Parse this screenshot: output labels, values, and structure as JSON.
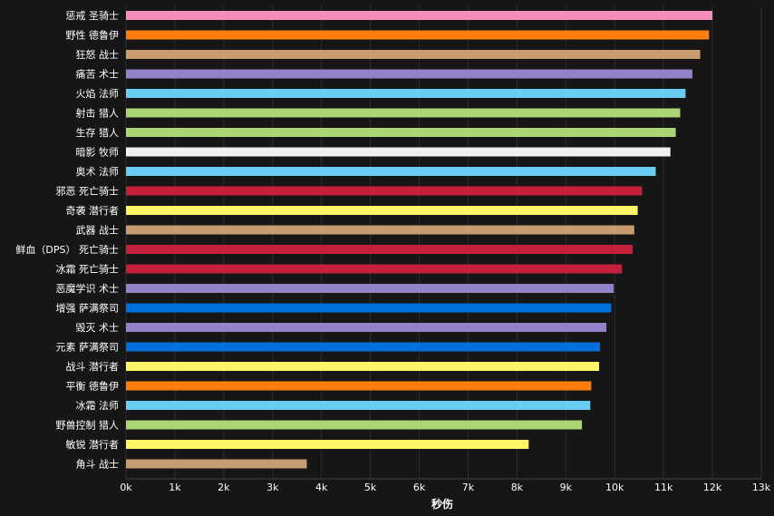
{
  "chart_data": {
    "type": "bar",
    "orientation": "horizontal",
    "xlabel": "秒伤",
    "ylabel": "",
    "title": "",
    "xlim": [
      0,
      13000
    ],
    "x_ticks": [
      "0k",
      "1k",
      "2k",
      "3k",
      "4k",
      "5k",
      "6k",
      "7k",
      "8k",
      "9k",
      "10k",
      "11k",
      "12k",
      "13k"
    ],
    "grid": "vertical",
    "legend": "none",
    "background": "#161616",
    "categories": [
      "惩戒 圣骑士",
      "野性 德鲁伊",
      "狂怒 战士",
      "痛苦 术士",
      "火焰 法师",
      "射击 猎人",
      "生存 猎人",
      "暗影 牧师",
      "奥术 法师",
      "邪恶 死亡骑士",
      "奇袭 潜行者",
      "武器 战士",
      "鲜血（DPS） 死亡骑士",
      "冰霜 死亡骑士",
      "恶魔学识 术士",
      "增强 萨满祭司",
      "毁灭 术士",
      "元素 萨满祭司",
      "战斗 潜行者",
      "平衡 德鲁伊",
      "冰霜 法师",
      "野兽控制 猎人",
      "敏锐 潜行者",
      "角斗 战士"
    ],
    "values": [
      12000,
      11930,
      11750,
      11590,
      11450,
      11340,
      11250,
      11140,
      10840,
      10560,
      10470,
      10400,
      10370,
      10150,
      9980,
      9930,
      9830,
      9700,
      9680,
      9520,
      9500,
      9330,
      8240,
      3700
    ],
    "colors": [
      "#f58cba",
      "#ff7d0a",
      "#c79c6e",
      "#9482c9",
      "#69ccf0",
      "#abd473",
      "#abd473",
      "#f0f0f0",
      "#69ccf0",
      "#c41f3b",
      "#fff569",
      "#c79c6e",
      "#c41f3b",
      "#c41f3b",
      "#9482c9",
      "#0070de",
      "#9482c9",
      "#0070de",
      "#fff569",
      "#ff7d0a",
      "#69ccf0",
      "#abd473",
      "#fff569",
      "#c79c6e"
    ],
    "label_color": "#ffffff",
    "grid_color": "#2e2e2e"
  }
}
